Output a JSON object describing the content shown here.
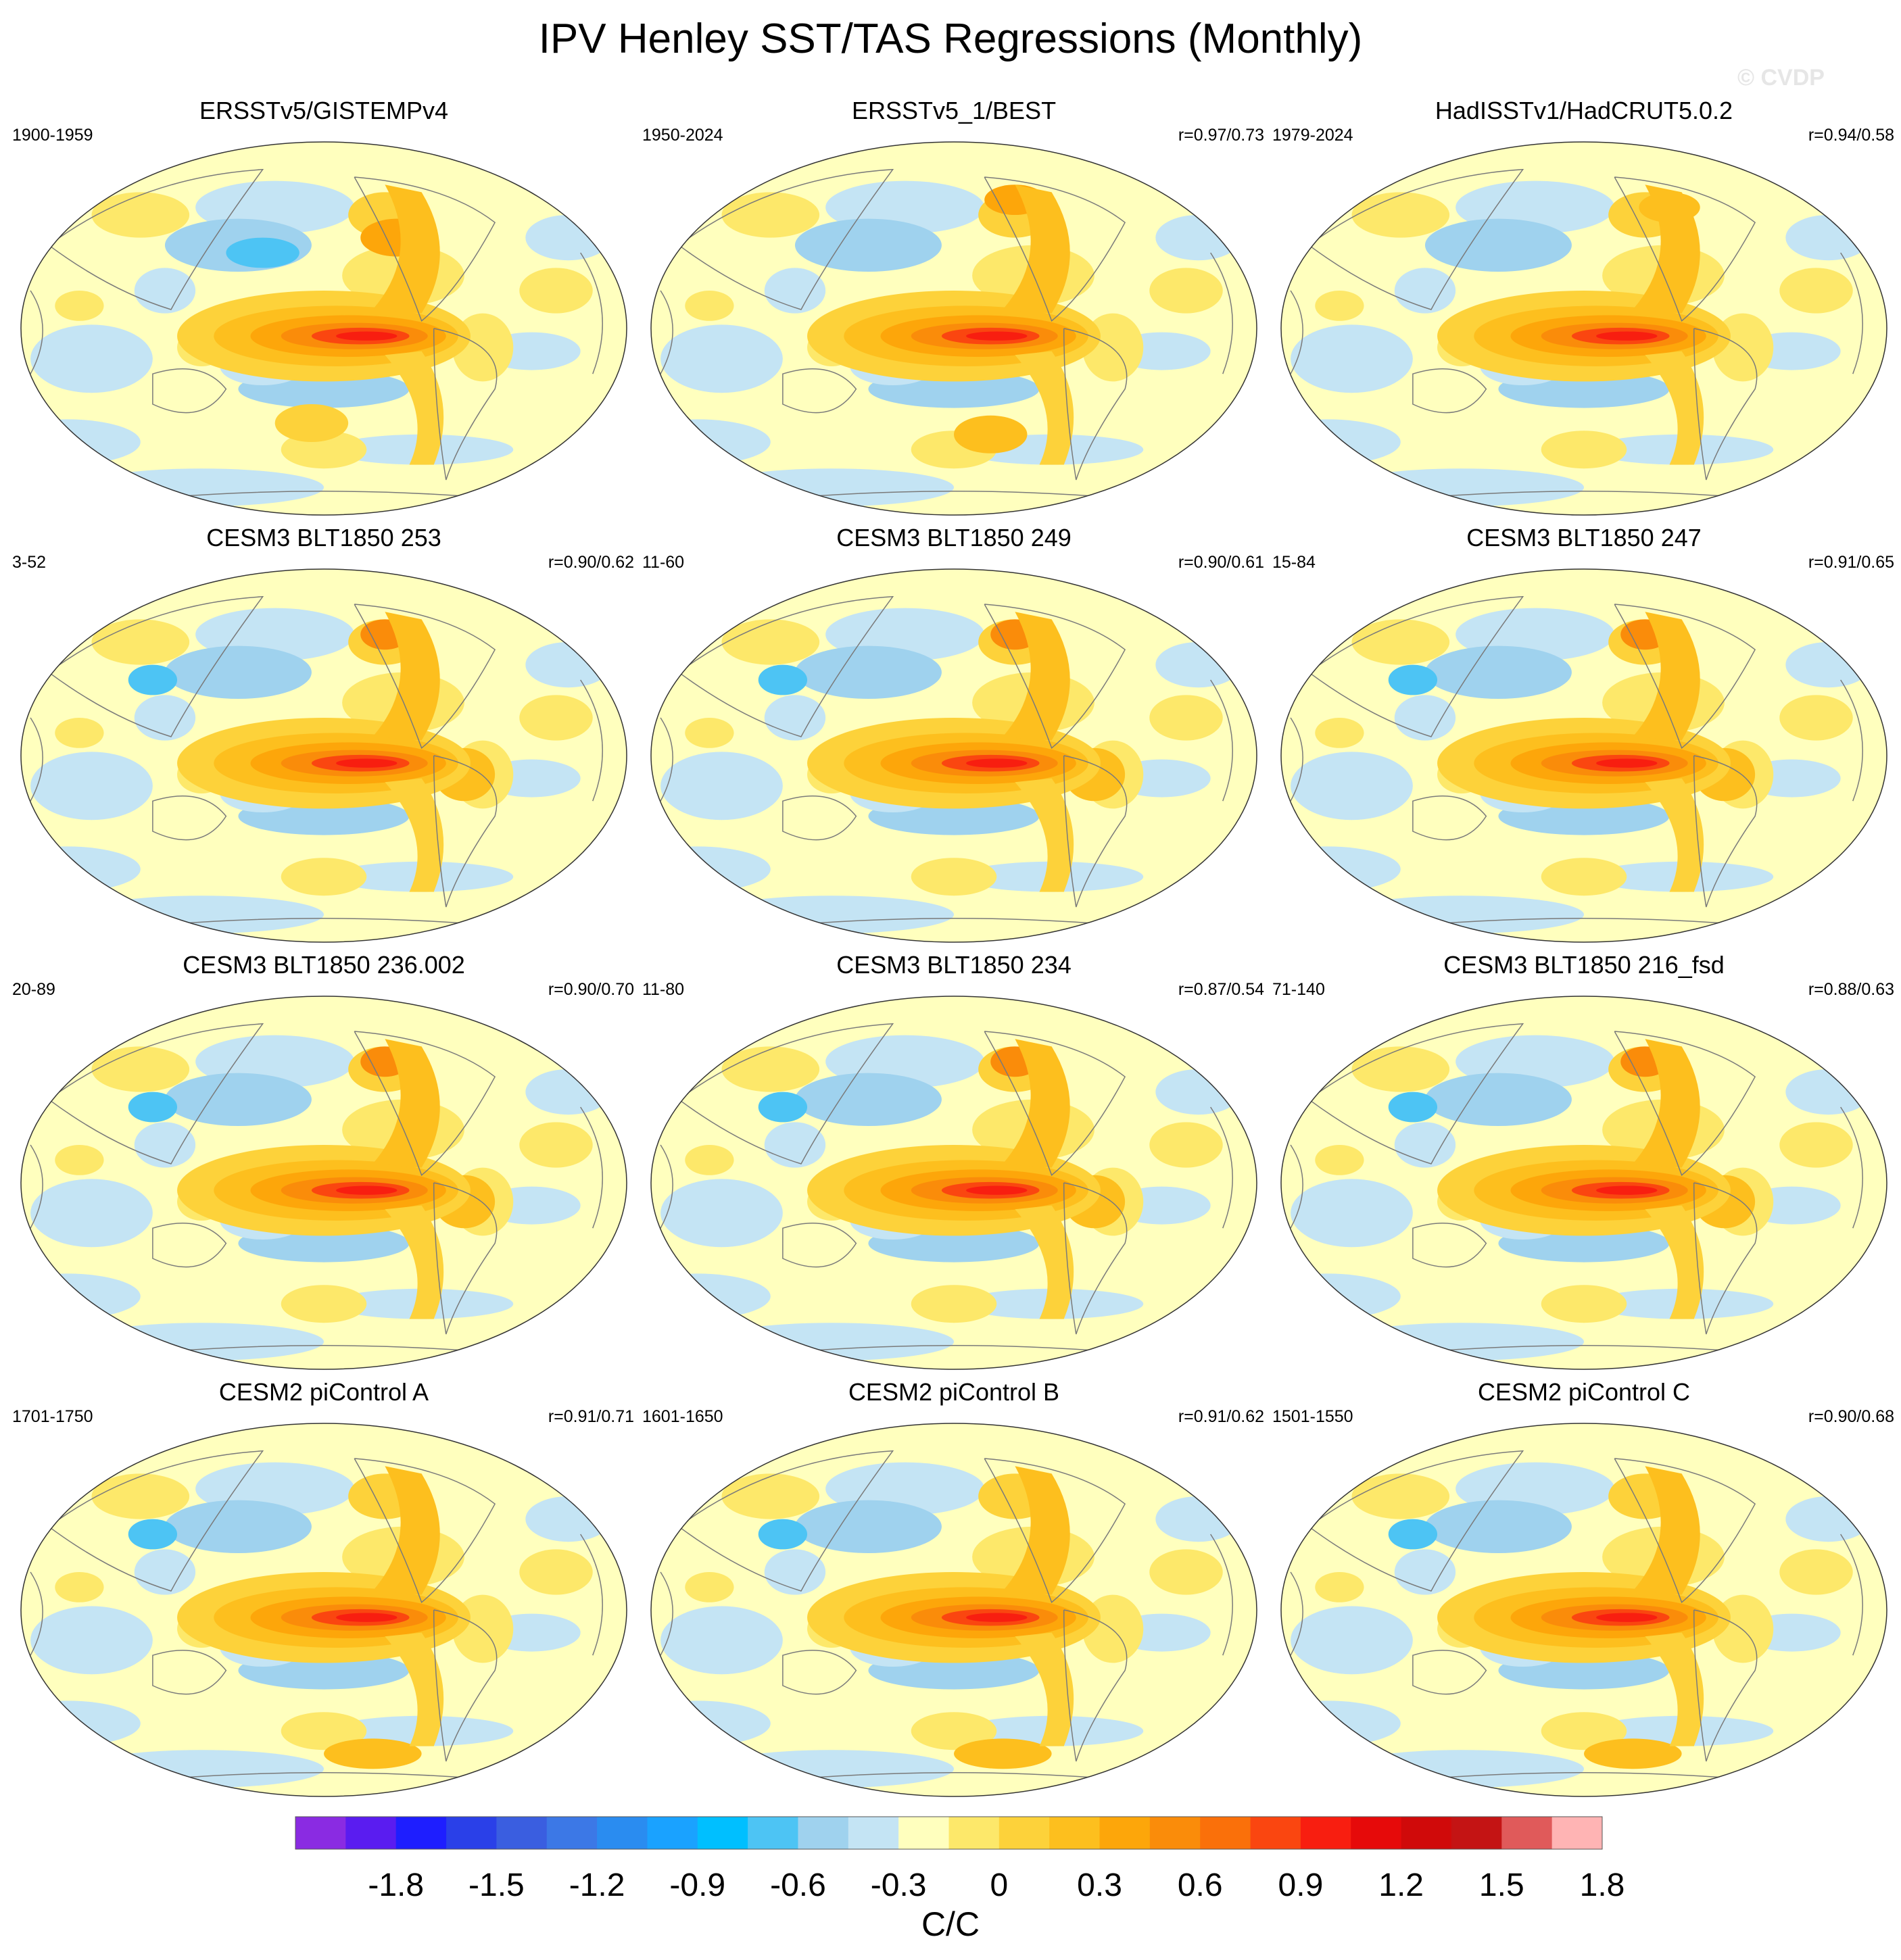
{
  "title": "IPV Henley SST/TAS Regressions (Monthly)",
  "watermark": "© CVDP",
  "panels": [
    {
      "title": "ERSSTv5/GISTEMPv4",
      "period": "1900-1959",
      "corr": "",
      "pattern": "obs1"
    },
    {
      "title": "ERSSTv5_1/BEST",
      "period": "1950-2024",
      "corr": "r=0.97/0.73",
      "pattern": "obs2"
    },
    {
      "title": "HadISSTv1/HadCRUT5.0.2",
      "period": "1979-2024",
      "corr": "r=0.94/0.58",
      "pattern": "obs3"
    },
    {
      "title": "CESM3 BLT1850 253",
      "period": "3-52",
      "corr": "r=0.90/0.62",
      "pattern": "model"
    },
    {
      "title": "CESM3 BLT1850 249",
      "period": "11-60",
      "corr": "r=0.90/0.61",
      "pattern": "model"
    },
    {
      "title": "CESM3 BLT1850 247",
      "period": "15-84",
      "corr": "r=0.91/0.65",
      "pattern": "model"
    },
    {
      "title": "CESM3 BLT1850 236.002",
      "period": "20-89",
      "corr": "r=0.90/0.70",
      "pattern": "model"
    },
    {
      "title": "CESM3 BLT1850 234",
      "period": "11-80",
      "corr": "r=0.87/0.54",
      "pattern": "model"
    },
    {
      "title": "CESM3 BLT1850 216_fsd",
      "period": "71-140",
      "corr": "r=0.88/0.63",
      "pattern": "model"
    },
    {
      "title": "CESM2 piControl A",
      "period": "1701-1750",
      "corr": "r=0.91/0.71",
      "pattern": "pi"
    },
    {
      "title": "CESM2 piControl B",
      "period": "1601-1650",
      "corr": "r=0.91/0.62",
      "pattern": "pi"
    },
    {
      "title": "CESM2 piControl C",
      "period": "1501-1550",
      "corr": "r=0.90/0.68",
      "pattern": "pi"
    }
  ],
  "colorbar": {
    "units": "C/C",
    "colors": [
      "#8a2be2",
      "#5a1cf0",
      "#1e1eff",
      "#2a40e8",
      "#3a5ee0",
      "#3c78e6",
      "#2a8cf0",
      "#1aa2ff",
      "#00bfff",
      "#4dc4f4",
      "#9fd2ee",
      "#c4e4f4",
      "#ffffbe",
      "#fde86a",
      "#fdd23a",
      "#fdbf1e",
      "#fda60a",
      "#fa8c0a",
      "#fa700a",
      "#fa4610",
      "#f81e10",
      "#e60a0a",
      "#d00a0a",
      "#c41414",
      "#e05a5a",
      "#ffb4b4"
    ],
    "tick_labels": [
      "-1.8",
      "-1.5",
      "-1.2",
      "-0.9",
      "-0.6",
      "-0.3",
      "0",
      "0.3",
      "0.6",
      "0.9",
      "1.2",
      "1.5",
      "1.8"
    ]
  }
}
